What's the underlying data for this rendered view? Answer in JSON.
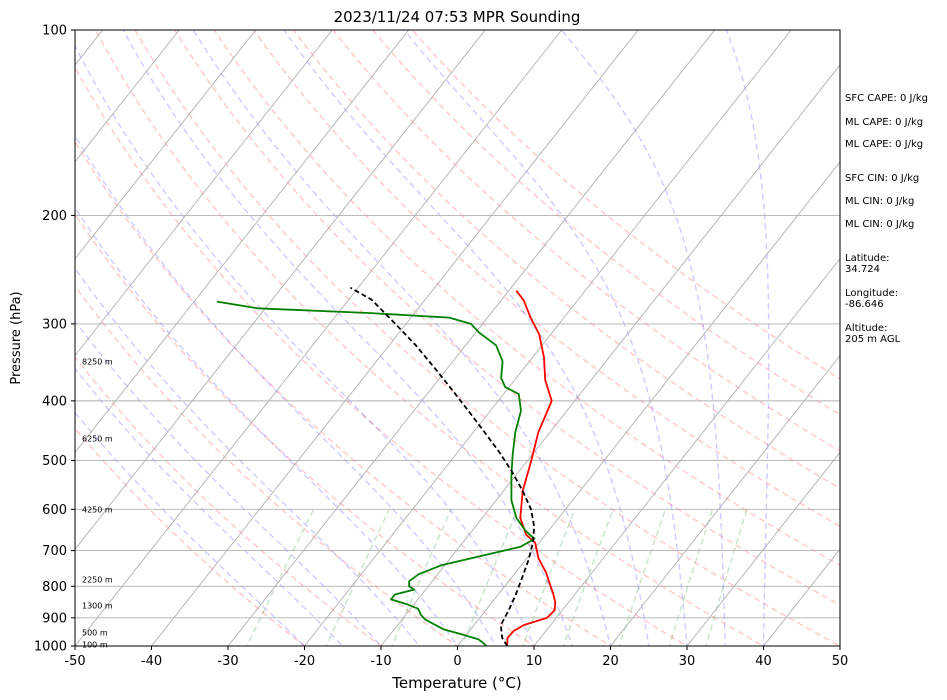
{
  "chart_data": {
    "type": "skew-t log-p sounding",
    "title": "2023/11/24 07:53 MPR Sounding",
    "xlabel": "Temperature (°C)",
    "ylabel": "Pressure (hPa)",
    "xlim": [
      -50,
      50
    ],
    "ylim": [
      1000,
      100
    ],
    "y_scale": "log",
    "grid": true,
    "x_ticks": [
      -50,
      -40,
      -30,
      -20,
      -10,
      0,
      10,
      20,
      30,
      40,
      50
    ],
    "y_ticks": [
      1000,
      900,
      800,
      700,
      600,
      500,
      400,
      300,
      200,
      100
    ],
    "series": [
      {
        "name": "Temperature",
        "color": "#ff0000",
        "points": [
          [
            6.5,
            1000
          ],
          [
            5.7,
            970
          ],
          [
            5.8,
            945
          ],
          [
            6.5,
            925
          ],
          [
            8.8,
            900
          ],
          [
            9.0,
            875
          ],
          [
            8.3,
            850
          ],
          [
            7.0,
            820
          ],
          [
            6.0,
            800
          ],
          [
            4.0,
            760
          ],
          [
            1.5,
            720
          ],
          [
            -0.5,
            680
          ],
          [
            -2.5,
            660
          ],
          [
            -5.0,
            620
          ],
          [
            -7.5,
            560
          ],
          [
            -9.5,
            500
          ],
          [
            -11.5,
            450
          ],
          [
            -13.0,
            400
          ],
          [
            -16.0,
            370
          ],
          [
            -18.5,
            340
          ],
          [
            -21.5,
            312
          ],
          [
            -24.5,
            292
          ],
          [
            -27.0,
            275
          ],
          [
            -29.0,
            265
          ]
        ]
      },
      {
        "name": "Dewpoint",
        "color": "#008000",
        "points": [
          [
            3.8,
            1000
          ],
          [
            2.8,
            985
          ],
          [
            2.0,
            975
          ],
          [
            -1.0,
            955
          ],
          [
            -3.5,
            940
          ],
          [
            -5.5,
            920
          ],
          [
            -7.0,
            905
          ],
          [
            -8.0,
            890
          ],
          [
            -9.0,
            870
          ],
          [
            -11.0,
            855
          ],
          [
            -13.5,
            840
          ],
          [
            -13.5,
            825
          ],
          [
            -11.5,
            810
          ],
          [
            -12.5,
            800
          ],
          [
            -13.0,
            785
          ],
          [
            -12.5,
            765
          ],
          [
            -10.5,
            740
          ],
          [
            -5.5,
            710
          ],
          [
            -2.0,
            690
          ],
          [
            -1.0,
            670
          ],
          [
            -3.0,
            650
          ],
          [
            -5.5,
            620
          ],
          [
            -8.0,
            580
          ],
          [
            -10.5,
            530
          ],
          [
            -12.5,
            490
          ],
          [
            -14.5,
            450
          ],
          [
            -16.0,
            415
          ],
          [
            -18.0,
            390
          ],
          [
            -20.5,
            380
          ],
          [
            -22.0,
            367
          ],
          [
            -23.5,
            345
          ],
          [
            -26.0,
            325
          ],
          [
            -29.5,
            310
          ],
          [
            -31.5,
            300
          ],
          [
            -35.0,
            293
          ],
          [
            -46.0,
            288
          ],
          [
            -61.0,
            283
          ],
          [
            -67.0,
            276
          ]
        ]
      },
      {
        "name": "Parcel",
        "color": "#000000",
        "dashed": true,
        "points": [
          [
            6.5,
            1000
          ],
          [
            5.0,
            970
          ],
          [
            3.5,
            925
          ],
          [
            3.0,
            875
          ],
          [
            2.3,
            825
          ],
          [
            1.4,
            775
          ],
          [
            0.4,
            725
          ],
          [
            -0.8,
            680
          ],
          [
            -2.3,
            640
          ],
          [
            -4.5,
            600
          ],
          [
            -7.5,
            560
          ],
          [
            -11.0,
            520
          ],
          [
            -14.5,
            485
          ],
          [
            -18.5,
            450
          ],
          [
            -22.5,
            418
          ],
          [
            -27.0,
            385
          ],
          [
            -31.5,
            355
          ],
          [
            -36.5,
            325
          ],
          [
            -42.0,
            297
          ],
          [
            -47.0,
            274
          ],
          [
            -51.0,
            262
          ]
        ]
      }
    ],
    "dry_adiabats_theta_C": [
      -20,
      -10,
      0,
      10,
      20,
      30,
      40,
      50,
      60,
      70,
      80,
      90,
      100,
      110,
      120
    ],
    "moist_adiabats_C": [
      -20,
      -15,
      -10,
      -5,
      0,
      5,
      10,
      15,
      20,
      25,
      30,
      35,
      40
    ],
    "mixing_ratio_lines_gkg": [
      0.4,
      1,
      2,
      4,
      7,
      10,
      16,
      24,
      32
    ],
    "altitude_markers": [
      "100 m",
      "500 m",
      "1300 m",
      "2250 m",
      "4250 m",
      "6250 m",
      "8250 m"
    ],
    "annotations": [
      "SFC CAPE: 0 J/kg",
      "ML CAPE: 0 J/kg",
      "ML CAPE: 0 J/kg",
      "SFC CIN: 0 J/kg",
      "ML CIN: 0 J/kg",
      "ML CIN: 0 J/kg",
      "Latitude:\n34.724",
      "Longitude:\n-86.646",
      "Altitude:\n205 m AGL"
    ]
  }
}
